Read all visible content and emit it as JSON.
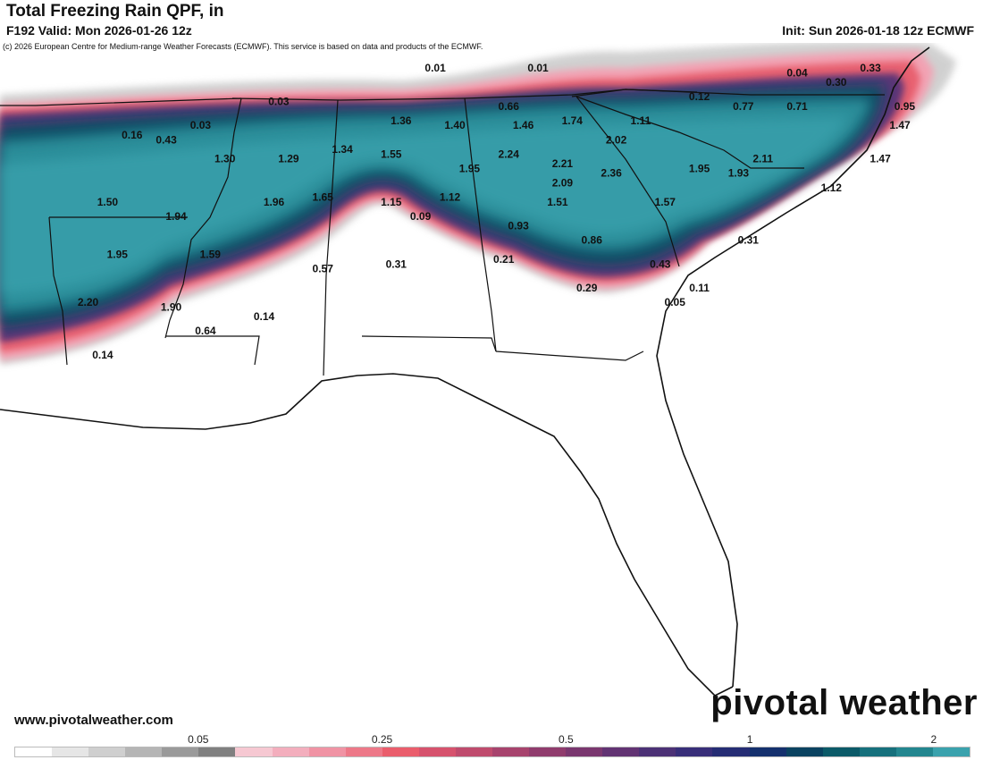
{
  "header": {
    "title": "Total Freezing Rain QPF, in",
    "valid": "F192 Valid: Mon 2026-01-26 12z",
    "init": "Init: Sun 2026-01-18 12z ECMWF",
    "credit": "(c) 2026 European Centre for Medium-range Weather Forecasts (ECMWF). This service is based on data and products of the ECMWF."
  },
  "footer": {
    "site": "www.pivotalweather.com",
    "brand": "pivotal weather"
  },
  "colorbar": {
    "ticks": [
      {
        "label": "0.05",
        "index": 5
      },
      {
        "label": "0.25",
        "index": 10
      },
      {
        "label": "0.5",
        "index": 15
      },
      {
        "label": "1",
        "index": 20
      },
      {
        "label": "2",
        "index": 25
      }
    ],
    "colors": [
      "#ffffff",
      "#e6e6e6",
      "#cfcfcf",
      "#b5b5b5",
      "#9a9a9a",
      "#808080",
      "#f6c8d2",
      "#f3aebd",
      "#f093a4",
      "#ed7888",
      "#ea5d6c",
      "#d6526d",
      "#bf4b6d",
      "#a7436d",
      "#903c6d",
      "#7a376f",
      "#623373",
      "#4c3176",
      "#382e79",
      "#252c74",
      "#14306d",
      "#0a4260",
      "#0b5a68",
      "#16707c",
      "#23868f",
      "#3aa2ad"
    ]
  },
  "map": {
    "title": "",
    "labels": [
      {
        "text": "0.01",
        "lon": -85.7,
        "lat": 37.8
      },
      {
        "text": "0.01",
        "lon": -83.6,
        "lat": 37.8
      },
      {
        "text": "0.04",
        "lon": -78.3,
        "lat": 37.7
      },
      {
        "text": "0.33",
        "lon": -76.8,
        "lat": 37.8
      },
      {
        "text": "0.30",
        "lon": -77.5,
        "lat": 37.5
      },
      {
        "text": "0.03",
        "lon": -88.9,
        "lat": 37.1
      },
      {
        "text": "0.12",
        "lon": -80.3,
        "lat": 37.2
      },
      {
        "text": "0.95",
        "lon": -76.1,
        "lat": 37.0
      },
      {
        "text": "0.66",
        "lon": -84.2,
        "lat": 37.0
      },
      {
        "text": "0.77",
        "lon": -79.4,
        "lat": 37.0
      },
      {
        "text": "0.71",
        "lon": -78.3,
        "lat": 37.0
      },
      {
        "text": "0.16",
        "lon": -91.9,
        "lat": 36.4
      },
      {
        "text": "0.03",
        "lon": -90.5,
        "lat": 36.6
      },
      {
        "text": "1.36",
        "lon": -86.4,
        "lat": 36.7
      },
      {
        "text": "1.40",
        "lon": -85.3,
        "lat": 36.6
      },
      {
        "text": "1.46",
        "lon": -83.9,
        "lat": 36.6
      },
      {
        "text": "1.74",
        "lon": -82.9,
        "lat": 36.7
      },
      {
        "text": "1.11",
        "lon": -81.5,
        "lat": 36.7
      },
      {
        "text": "1.47",
        "lon": -76.2,
        "lat": 36.6
      },
      {
        "text": "0.43",
        "lon": -91.2,
        "lat": 36.3
      },
      {
        "text": "2.02",
        "lon": -82.0,
        "lat": 36.3
      },
      {
        "text": "1.30",
        "lon": -90.0,
        "lat": 35.9
      },
      {
        "text": "1.29",
        "lon": -88.7,
        "lat": 35.9
      },
      {
        "text": "1.34",
        "lon": -87.6,
        "lat": 36.1
      },
      {
        "text": "1.55",
        "lon": -86.6,
        "lat": 36.0
      },
      {
        "text": "2.24",
        "lon": -84.2,
        "lat": 36.0
      },
      {
        "text": "2.11",
        "lon": -79.0,
        "lat": 35.9
      },
      {
        "text": "1.47",
        "lon": -76.6,
        "lat": 35.9
      },
      {
        "text": "2.21",
        "lon": -83.1,
        "lat": 35.8
      },
      {
        "text": "1.95",
        "lon": -85.0,
        "lat": 35.7
      },
      {
        "text": "2.36",
        "lon": -82.1,
        "lat": 35.6
      },
      {
        "text": "1.95",
        "lon": -80.3,
        "lat": 35.7
      },
      {
        "text": "1.93",
        "lon": -79.5,
        "lat": 35.6
      },
      {
        "text": "2.09",
        "lon": -83.1,
        "lat": 35.4
      },
      {
        "text": "1.12",
        "lon": -77.6,
        "lat": 35.3
      },
      {
        "text": "1.50",
        "lon": -92.4,
        "lat": 35.0
      },
      {
        "text": "1.96",
        "lon": -89.0,
        "lat": 35.0
      },
      {
        "text": "1.65",
        "lon": -88.0,
        "lat": 35.1
      },
      {
        "text": "1.15",
        "lon": -86.6,
        "lat": 35.0
      },
      {
        "text": "1.12",
        "lon": -85.4,
        "lat": 35.1
      },
      {
        "text": "1.51",
        "lon": -83.2,
        "lat": 35.0
      },
      {
        "text": "1.57",
        "lon": -81.0,
        "lat": 35.0
      },
      {
        "text": "1.94",
        "lon": -91.0,
        "lat": 34.7
      },
      {
        "text": "0.09",
        "lon": -86.0,
        "lat": 34.7
      },
      {
        "text": "0.93",
        "lon": -84.0,
        "lat": 34.5
      },
      {
        "text": "0.86",
        "lon": -82.5,
        "lat": 34.2
      },
      {
        "text": "0.31",
        "lon": -79.3,
        "lat": 34.2
      },
      {
        "text": "1.95",
        "lon": -92.2,
        "lat": 33.9
      },
      {
        "text": "1.59",
        "lon": -90.3,
        "lat": 33.9
      },
      {
        "text": "0.21",
        "lon": -84.3,
        "lat": 33.8
      },
      {
        "text": "0.43",
        "lon": -81.1,
        "lat": 33.7
      },
      {
        "text": "0.57",
        "lon": -88.0,
        "lat": 33.6
      },
      {
        "text": "0.31",
        "lon": -86.5,
        "lat": 33.7
      },
      {
        "text": "0.29",
        "lon": -82.6,
        "lat": 33.2
      },
      {
        "text": "0.11",
        "lon": -80.3,
        "lat": 33.2
      },
      {
        "text": "0.05",
        "lon": -80.8,
        "lat": 32.9
      },
      {
        "text": "2.20",
        "lon": -92.8,
        "lat": 32.9
      },
      {
        "text": "1.90",
        "lon": -91.1,
        "lat": 32.8
      },
      {
        "text": "0.14",
        "lon": -89.2,
        "lat": 32.6
      },
      {
        "text": "0.64",
        "lon": -90.4,
        "lat": 32.3
      },
      {
        "text": "0.14",
        "lon": -92.5,
        "lat": 31.8
      }
    ]
  }
}
